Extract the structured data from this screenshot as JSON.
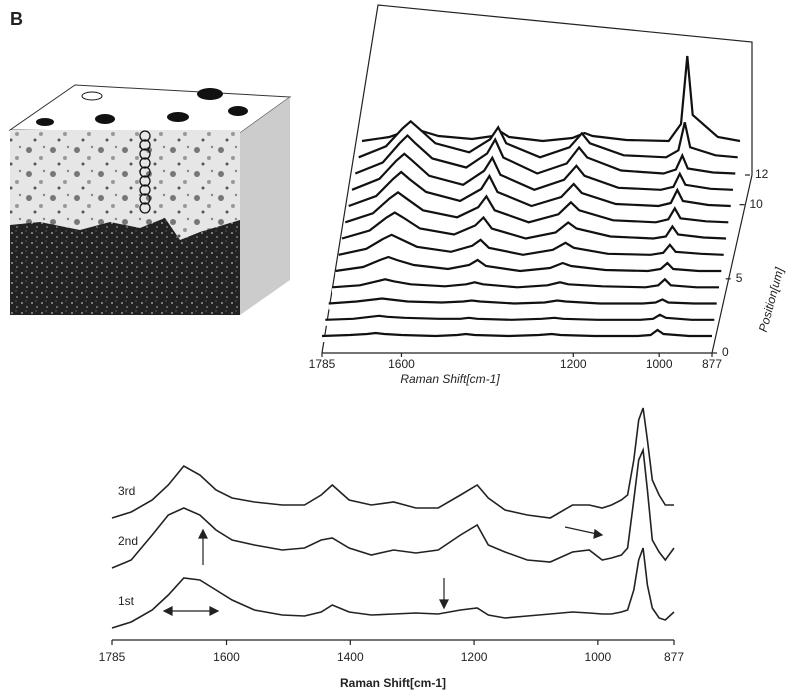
{
  "panel_label": "B",
  "chart_data": [
    {
      "type": "waterfall",
      "xlabel": "Raman Shift[cm-1]",
      "zlabel": "Position[um]",
      "xlim": [
        1785,
        877
      ],
      "xticks": [
        1785,
        1600,
        1200,
        1000,
        877
      ],
      "zlim": [
        0,
        12
      ],
      "zticks": [
        0,
        5,
        10,
        12
      ],
      "color": "#111111",
      "x": [
        1785,
        1720,
        1680,
        1660,
        1640,
        1600,
        1520,
        1470,
        1450,
        1430,
        1350,
        1280,
        1250,
        1230,
        1150,
        1050,
        1020,
        1004,
        990,
        930,
        877
      ],
      "series": [
        {
          "values": [
            2,
            3,
            4,
            5,
            4,
            3,
            2,
            3,
            4,
            3,
            2,
            3,
            4,
            3,
            2,
            2,
            3,
            8,
            4,
            2,
            2
          ]
        },
        {
          "values": [
            2,
            3,
            5,
            6,
            5,
            4,
            3,
            3,
            4,
            3,
            2,
            3,
            4,
            3,
            2,
            2,
            3,
            7,
            4,
            2,
            2
          ]
        },
        {
          "values": [
            2,
            4,
            6,
            7,
            6,
            4,
            3,
            4,
            5,
            4,
            2,
            3,
            5,
            4,
            2,
            2,
            3,
            6,
            3,
            2,
            2
          ]
        },
        {
          "values": [
            2,
            4,
            8,
            10,
            8,
            5,
            3,
            5,
            7,
            5,
            2,
            4,
            7,
            5,
            3,
            2,
            4,
            10,
            4,
            2,
            2
          ]
        },
        {
          "values": [
            2,
            6,
            13,
            16,
            13,
            8,
            4,
            8,
            13,
            7,
            2,
            5,
            10,
            7,
            3,
            2,
            4,
            10,
            4,
            2,
            2
          ]
        },
        {
          "values": [
            2,
            8,
            18,
            22,
            18,
            10,
            5,
            11,
            17,
            9,
            2,
            7,
            14,
            9,
            3,
            2,
            4,
            12,
            5,
            3,
            2
          ]
        },
        {
          "values": [
            2,
            10,
            23,
            28,
            23,
            12,
            6,
            15,
            23,
            12,
            2,
            8,
            18,
            12,
            4,
            2,
            4,
            14,
            6,
            3,
            2
          ]
        },
        {
          "values": [
            2,
            11,
            26,
            32,
            26,
            14,
            7,
            17,
            28,
            14,
            2,
            10,
            22,
            14,
            4,
            2,
            5,
            16,
            6,
            3,
            2
          ]
        },
        {
          "values": [
            2,
            12,
            29,
            36,
            29,
            16,
            7,
            19,
            32,
            16,
            2,
            11,
            24,
            15,
            4,
            2,
            5,
            18,
            7,
            3,
            2
          ]
        },
        {
          "values": [
            2,
            13,
            31,
            38,
            31,
            16,
            7,
            21,
            34,
            17,
            2,
            12,
            26,
            16,
            4,
            2,
            5,
            18,
            7,
            3,
            2
          ]
        },
        {
          "values": [
            2,
            13,
            32,
            40,
            32,
            17,
            8,
            22,
            36,
            18,
            2,
            12,
            28,
            18,
            5,
            2,
            6,
            20,
            7,
            3,
            2
          ]
        },
        {
          "values": [
            2,
            13,
            31,
            38,
            31,
            16,
            7,
            20,
            32,
            16,
            2,
            12,
            26,
            16,
            4,
            2,
            9,
            37,
            12,
            4,
            2
          ]
        },
        {
          "values": [
            2,
            6,
            12,
            14,
            12,
            7,
            4,
            7,
            11,
            6,
            2,
            5,
            10,
            7,
            3,
            2,
            19,
            87,
            28,
            6,
            2
          ]
        }
      ]
    },
    {
      "type": "line",
      "xlabel": "Raman Shift[cm-1]",
      "xlim": [
        1785,
        877
      ],
      "xticks": [
        1785,
        1600,
        1400,
        1200,
        1000,
        877
      ],
      "color": "#222222",
      "x": [
        1785,
        1754,
        1720,
        1694,
        1669,
        1643,
        1617,
        1591,
        1555,
        1510,
        1474,
        1447,
        1429,
        1402,
        1366,
        1330,
        1294,
        1258,
        1222,
        1195,
        1177,
        1150,
        1114,
        1077,
        1041,
        1014,
        993,
        978,
        962,
        952,
        942,
        934,
        927,
        920,
        912,
        901,
        891,
        877
      ],
      "series": [
        {
          "name": "3rd",
          "values": [
            122,
            128,
            140,
            155,
            174,
            165,
            150,
            142,
            138,
            135,
            135,
            145,
            155,
            140,
            135,
            138,
            132,
            132,
            145,
            155,
            142,
            130,
            125,
            122,
            135,
            135,
            132,
            135,
            140,
            145,
            180,
            220,
            232,
            200,
            160,
            145,
            135,
            135
          ]
        },
        {
          "name": "2nd",
          "values": [
            72,
            80,
            105,
            125,
            132,
            125,
            110,
            100,
            95,
            90,
            92,
            100,
            102,
            92,
            85,
            90,
            87,
            90,
            105,
            115,
            95,
            88,
            80,
            78,
            88,
            90,
            80,
            82,
            85,
            92,
            140,
            180,
            190,
            150,
            100,
            88,
            80,
            92
          ]
        },
        {
          "name": "1st",
          "values": [
            12,
            18,
            30,
            45,
            62,
            60,
            50,
            40,
            30,
            25,
            24,
            28,
            35,
            28,
            25,
            26,
            27,
            26,
            30,
            32,
            25,
            22,
            24,
            26,
            28,
            27,
            26,
            26,
            28,
            30,
            50,
            80,
            92,
            55,
            32,
            22,
            20,
            28
          ]
        }
      ]
    }
  ]
}
